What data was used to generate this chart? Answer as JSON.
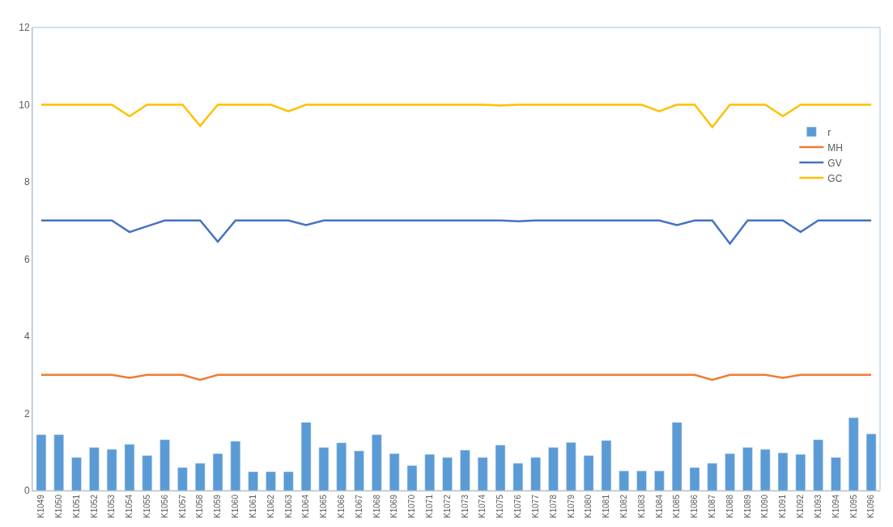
{
  "chart_data": {
    "type": "bar",
    "categories": [
      "K1049",
      "K1050",
      "K1051",
      "K1052",
      "K1053",
      "K1054",
      "K1055",
      "K1056",
      "K1057",
      "K1058",
      "K1059",
      "K1060",
      "K1061",
      "K1062",
      "K1063",
      "K1064",
      "K1065",
      "K1066",
      "K1067",
      "K1068",
      "K1069",
      "K1070",
      "K1071",
      "K1072",
      "K1073",
      "K1074",
      "K1075",
      "K1076",
      "K1077",
      "K1078",
      "K1079",
      "K1080",
      "K1081",
      "K1082",
      "K1083",
      "K1084",
      "K1085",
      "K1086",
      "K1087",
      "K1088",
      "K1089",
      "K1090",
      "K1091",
      "K1092",
      "K1093",
      "K1094",
      "K1095",
      "K1096"
    ],
    "series": [
      {
        "name": "r",
        "color": "#5b9bd5",
        "values": [
          1.45,
          1.45,
          0.86,
          1.12,
          1.07,
          1.2,
          0.91,
          1.32,
          0.6,
          0.71,
          0.96,
          1.28,
          0.49,
          0.49,
          0.49,
          1.77,
          1.12,
          1.24,
          1.03,
          1.45,
          0.96,
          0.65,
          0.94,
          0.86,
          1.05,
          0.86,
          1.18,
          0.71,
          0.86,
          1.12,
          1.25,
          0.91,
          1.3,
          0.51,
          0.51,
          0.51,
          1.77,
          0.6,
          0.71,
          0.96,
          1.12,
          1.07,
          0.98,
          0.94,
          1.32,
          0.86,
          1.89,
          1.47
        ]
      },
      {
        "name": "MH",
        "type": "line",
        "color": "#ed7d31",
        "values": [
          3,
          3,
          3,
          3,
          3,
          2.92,
          3,
          3,
          3,
          2.87,
          3,
          3,
          3,
          3,
          3,
          3,
          3,
          3,
          3,
          3,
          3,
          3,
          3,
          3,
          3,
          3,
          3,
          3,
          3,
          3,
          3,
          3,
          3,
          3,
          3,
          3,
          3,
          3,
          2.87,
          3,
          3,
          3,
          2.92,
          3,
          3,
          3,
          3,
          3
        ]
      },
      {
        "name": "GV",
        "type": "line",
        "color": "#4472c4",
        "values": [
          7,
          7,
          7,
          7,
          7,
          6.7,
          6.85,
          7,
          7,
          7,
          6.45,
          7,
          7,
          7,
          7,
          6.88,
          7,
          7,
          7,
          7,
          7,
          7,
          7,
          7,
          7,
          7,
          7,
          6.98,
          7,
          7,
          7,
          7,
          7,
          7,
          7,
          7,
          6.88,
          7,
          7,
          6.4,
          7,
          7,
          7,
          6.7,
          7,
          7,
          7,
          7
        ]
      },
      {
        "name": "GC",
        "type": "line",
        "color": "#ffc000",
        "values": [
          10,
          10,
          10,
          10,
          10,
          9.7,
          10,
          10,
          10,
          9.45,
          10,
          10,
          10,
          10,
          9.83,
          10,
          10,
          10,
          10,
          10,
          10,
          10,
          10,
          10,
          10,
          10,
          9.98,
          10,
          10,
          10,
          10,
          10,
          10,
          10,
          10,
          9.83,
          10,
          10,
          9.42,
          10,
          10,
          10,
          9.7,
          10,
          10,
          10,
          10,
          10
        ]
      }
    ],
    "ylim": [
      0,
      12
    ],
    "yticks": [
      0,
      2,
      4,
      6,
      8,
      10,
      12
    ],
    "grid": false,
    "legend": "right",
    "marker": "none",
    "line_style": "solid"
  }
}
